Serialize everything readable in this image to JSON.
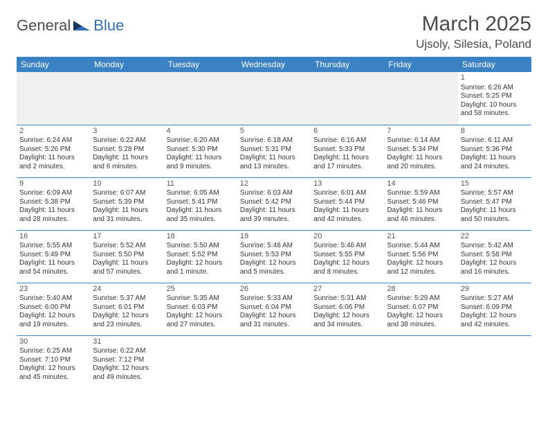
{
  "logo": {
    "text1": "General",
    "text2": "Blue"
  },
  "title": "March 2025",
  "location": "Ujsoly, Silesia, Poland",
  "headers": [
    "Sunday",
    "Monday",
    "Tuesday",
    "Wednesday",
    "Thursday",
    "Friday",
    "Saturday"
  ],
  "colors": {
    "header_bg": "#3b82c4",
    "header_fg": "#ffffff",
    "border": "#3b82c4",
    "logo_gray": "#4a4a4a",
    "logo_blue": "#2f6eb5",
    "bg": "#ffffff",
    "empty_bg": "#f0f0f0"
  },
  "typography": {
    "title_fontsize": 30,
    "location_fontsize": 17,
    "header_fontsize": 12,
    "cell_fontsize": 10,
    "daynum_fontsize": 11
  },
  "weeks": [
    [
      null,
      null,
      null,
      null,
      null,
      null,
      {
        "n": "1",
        "sr": "Sunrise: 6:26 AM",
        "ss": "Sunset: 5:25 PM",
        "dl1": "Daylight: 10 hours",
        "dl2": "and 58 minutes."
      }
    ],
    [
      {
        "n": "2",
        "sr": "Sunrise: 6:24 AM",
        "ss": "Sunset: 5:26 PM",
        "dl1": "Daylight: 11 hours",
        "dl2": "and 2 minutes."
      },
      {
        "n": "3",
        "sr": "Sunrise: 6:22 AM",
        "ss": "Sunset: 5:28 PM",
        "dl1": "Daylight: 11 hours",
        "dl2": "and 6 minutes."
      },
      {
        "n": "4",
        "sr": "Sunrise: 6:20 AM",
        "ss": "Sunset: 5:30 PM",
        "dl1": "Daylight: 11 hours",
        "dl2": "and 9 minutes."
      },
      {
        "n": "5",
        "sr": "Sunrise: 6:18 AM",
        "ss": "Sunset: 5:31 PM",
        "dl1": "Daylight: 11 hours",
        "dl2": "and 13 minutes."
      },
      {
        "n": "6",
        "sr": "Sunrise: 6:16 AM",
        "ss": "Sunset: 5:33 PM",
        "dl1": "Daylight: 11 hours",
        "dl2": "and 17 minutes."
      },
      {
        "n": "7",
        "sr": "Sunrise: 6:14 AM",
        "ss": "Sunset: 5:34 PM",
        "dl1": "Daylight: 11 hours",
        "dl2": "and 20 minutes."
      },
      {
        "n": "8",
        "sr": "Sunrise: 6:11 AM",
        "ss": "Sunset: 5:36 PM",
        "dl1": "Daylight: 11 hours",
        "dl2": "and 24 minutes."
      }
    ],
    [
      {
        "n": "9",
        "sr": "Sunrise: 6:09 AM",
        "ss": "Sunset: 5:38 PM",
        "dl1": "Daylight: 11 hours",
        "dl2": "and 28 minutes."
      },
      {
        "n": "10",
        "sr": "Sunrise: 6:07 AM",
        "ss": "Sunset: 5:39 PM",
        "dl1": "Daylight: 11 hours",
        "dl2": "and 31 minutes."
      },
      {
        "n": "11",
        "sr": "Sunrise: 6:05 AM",
        "ss": "Sunset: 5:41 PM",
        "dl1": "Daylight: 11 hours",
        "dl2": "and 35 minutes."
      },
      {
        "n": "12",
        "sr": "Sunrise: 6:03 AM",
        "ss": "Sunset: 5:42 PM",
        "dl1": "Daylight: 11 hours",
        "dl2": "and 39 minutes."
      },
      {
        "n": "13",
        "sr": "Sunrise: 6:01 AM",
        "ss": "Sunset: 5:44 PM",
        "dl1": "Daylight: 11 hours",
        "dl2": "and 42 minutes."
      },
      {
        "n": "14",
        "sr": "Sunrise: 5:59 AM",
        "ss": "Sunset: 5:46 PM",
        "dl1": "Daylight: 11 hours",
        "dl2": "and 46 minutes."
      },
      {
        "n": "15",
        "sr": "Sunrise: 5:57 AM",
        "ss": "Sunset: 5:47 PM",
        "dl1": "Daylight: 11 hours",
        "dl2": "and 50 minutes."
      }
    ],
    [
      {
        "n": "16",
        "sr": "Sunrise: 5:55 AM",
        "ss": "Sunset: 5:49 PM",
        "dl1": "Daylight: 11 hours",
        "dl2": "and 54 minutes."
      },
      {
        "n": "17",
        "sr": "Sunrise: 5:52 AM",
        "ss": "Sunset: 5:50 PM",
        "dl1": "Daylight: 11 hours",
        "dl2": "and 57 minutes."
      },
      {
        "n": "18",
        "sr": "Sunrise: 5:50 AM",
        "ss": "Sunset: 5:52 PM",
        "dl1": "Daylight: 12 hours",
        "dl2": "and 1 minute."
      },
      {
        "n": "19",
        "sr": "Sunrise: 5:48 AM",
        "ss": "Sunset: 5:53 PM",
        "dl1": "Daylight: 12 hours",
        "dl2": "and 5 minutes."
      },
      {
        "n": "20",
        "sr": "Sunrise: 5:46 AM",
        "ss": "Sunset: 5:55 PM",
        "dl1": "Daylight: 12 hours",
        "dl2": "and 8 minutes."
      },
      {
        "n": "21",
        "sr": "Sunrise: 5:44 AM",
        "ss": "Sunset: 5:56 PM",
        "dl1": "Daylight: 12 hours",
        "dl2": "and 12 minutes."
      },
      {
        "n": "22",
        "sr": "Sunrise: 5:42 AM",
        "ss": "Sunset: 5:58 PM",
        "dl1": "Daylight: 12 hours",
        "dl2": "and 16 minutes."
      }
    ],
    [
      {
        "n": "23",
        "sr": "Sunrise: 5:40 AM",
        "ss": "Sunset: 6:00 PM",
        "dl1": "Daylight: 12 hours",
        "dl2": "and 19 minutes."
      },
      {
        "n": "24",
        "sr": "Sunrise: 5:37 AM",
        "ss": "Sunset: 6:01 PM",
        "dl1": "Daylight: 12 hours",
        "dl2": "and 23 minutes."
      },
      {
        "n": "25",
        "sr": "Sunrise: 5:35 AM",
        "ss": "Sunset: 6:03 PM",
        "dl1": "Daylight: 12 hours",
        "dl2": "and 27 minutes."
      },
      {
        "n": "26",
        "sr": "Sunrise: 5:33 AM",
        "ss": "Sunset: 6:04 PM",
        "dl1": "Daylight: 12 hours",
        "dl2": "and 31 minutes."
      },
      {
        "n": "27",
        "sr": "Sunrise: 5:31 AM",
        "ss": "Sunset: 6:06 PM",
        "dl1": "Daylight: 12 hours",
        "dl2": "and 34 minutes."
      },
      {
        "n": "28",
        "sr": "Sunrise: 5:29 AM",
        "ss": "Sunset: 6:07 PM",
        "dl1": "Daylight: 12 hours",
        "dl2": "and 38 minutes."
      },
      {
        "n": "29",
        "sr": "Sunrise: 5:27 AM",
        "ss": "Sunset: 6:09 PM",
        "dl1": "Daylight: 12 hours",
        "dl2": "and 42 minutes."
      }
    ],
    [
      {
        "n": "30",
        "sr": "Sunrise: 6:25 AM",
        "ss": "Sunset: 7:10 PM",
        "dl1": "Daylight: 12 hours",
        "dl2": "and 45 minutes."
      },
      {
        "n": "31",
        "sr": "Sunrise: 6:22 AM",
        "ss": "Sunset: 7:12 PM",
        "dl1": "Daylight: 12 hours",
        "dl2": "and 49 minutes."
      },
      null,
      null,
      null,
      null,
      null
    ]
  ]
}
